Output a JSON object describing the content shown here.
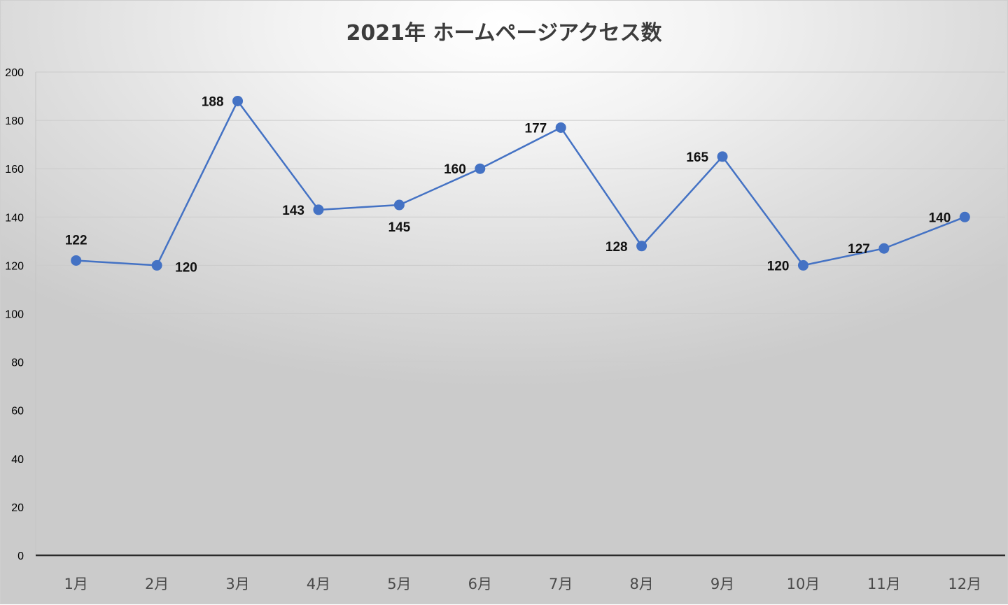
{
  "chart_data": {
    "type": "line",
    "title": "2021年 ホームページアクセス数",
    "xlabel": "",
    "ylabel": "",
    "categories": [
      "1月",
      "2月",
      "3月",
      "4月",
      "5月",
      "6月",
      "7月",
      "8月",
      "9月",
      "10月",
      "11月",
      "12月"
    ],
    "series": [
      {
        "values": [
          122,
          120,
          188,
          143,
          145,
          160,
          177,
          128,
          165,
          120,
          127,
          140
        ],
        "color": "#4472c4"
      }
    ],
    "ylim": [
      0,
      200
    ],
    "yticks": [
      0,
      20,
      40,
      60,
      80,
      100,
      120,
      140,
      160,
      180,
      200
    ],
    "ytick_labels": [
      "0",
      "20",
      "40",
      "60",
      "80",
      "100",
      "120",
      "140",
      "160",
      "180",
      "200"
    ],
    "data_labels": [
      "122",
      "120",
      "188",
      "143",
      "145",
      "160",
      "177",
      "128",
      "165",
      "120",
      "127",
      "140"
    ],
    "data_label_positions": [
      "above",
      "right",
      "left",
      "left",
      "below",
      "left",
      "left",
      "left",
      "left",
      "left",
      "left",
      "left"
    ],
    "grid": true,
    "legend": "none"
  }
}
